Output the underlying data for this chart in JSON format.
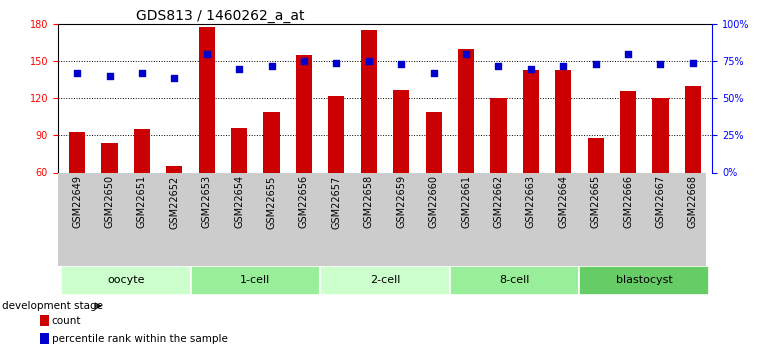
{
  "title": "GDS813 / 1460262_a_at",
  "samples": [
    "GSM22649",
    "GSM22650",
    "GSM22651",
    "GSM22652",
    "GSM22653",
    "GSM22654",
    "GSM22655",
    "GSM22656",
    "GSM22657",
    "GSM22658",
    "GSM22659",
    "GSM22660",
    "GSM22661",
    "GSM22662",
    "GSM22663",
    "GSM22664",
    "GSM22665",
    "GSM22666",
    "GSM22667",
    "GSM22668"
  ],
  "counts": [
    93,
    84,
    95,
    65,
    178,
    96,
    109,
    155,
    122,
    175,
    127,
    109,
    160,
    120,
    143,
    143,
    88,
    126,
    120,
    130
  ],
  "percentiles": [
    67,
    65,
    67,
    64,
    80,
    70,
    72,
    75,
    74,
    75,
    73,
    67,
    80,
    72,
    70,
    72,
    73,
    80,
    73,
    74
  ],
  "groups": [
    {
      "label": "oocyte",
      "start": 0,
      "end": 3,
      "color": "#ccffcc"
    },
    {
      "label": "1-cell",
      "start": 4,
      "end": 7,
      "color": "#99ee99"
    },
    {
      "label": "2-cell",
      "start": 8,
      "end": 11,
      "color": "#ccffcc"
    },
    {
      "label": "8-cell",
      "start": 12,
      "end": 15,
      "color": "#99ee99"
    },
    {
      "label": "blastocyst",
      "start": 16,
      "end": 19,
      "color": "#66cc66"
    }
  ],
  "ylim_left": [
    60,
    180
  ],
  "ylim_right": [
    0,
    100
  ],
  "yticks_left": [
    60,
    90,
    120,
    150,
    180
  ],
  "yticks_right": [
    0,
    25,
    50,
    75,
    100
  ],
  "yticklabels_right": [
    "0%",
    "25%",
    "50%",
    "75%",
    "100%"
  ],
  "bar_color": "#cc0000",
  "scatter_color": "#0000cc",
  "bar_width": 0.5,
  "sample_band_color": "#cccccc",
  "title_fontsize": 10,
  "tick_fontsize": 7,
  "label_fontsize": 8,
  "group_fontsize": 8
}
